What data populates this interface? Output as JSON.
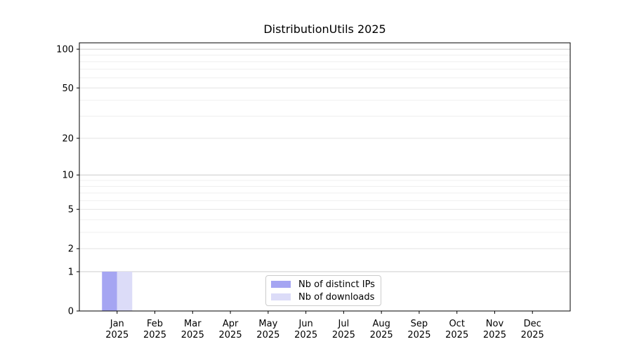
{
  "title": "DistributionUtils 2025",
  "chart_data": {
    "type": "bar",
    "title": "DistributionUtils 2025",
    "categories": [
      "Jan\n2025",
      "Feb\n2025",
      "Mar\n2025",
      "Apr\n2025",
      "May\n2025",
      "Jun\n2025",
      "Jul\n2025",
      "Aug\n2025",
      "Sep\n2025",
      "Oct\n2025",
      "Nov\n2025",
      "Dec\n2025"
    ],
    "series": [
      {
        "name": "Nb of distinct IPs",
        "color": "#a5a5f2",
        "values": [
          1,
          0,
          0,
          0,
          0,
          0,
          0,
          0,
          0,
          0,
          0,
          0
        ]
      },
      {
        "name": "Nb of downloads",
        "color": "#dcdcf8",
        "values": [
          1,
          0,
          0,
          0,
          0,
          0,
          0,
          0,
          0,
          0,
          0,
          0
        ]
      }
    ],
    "xlabel": "",
    "ylabel": "",
    "yscale": "log1p",
    "ylim": [
      0,
      112
    ],
    "yticks": [
      0,
      1,
      2,
      5,
      10,
      20,
      50,
      100
    ],
    "minor_yticks": [
      3,
      4,
      6,
      7,
      8,
      9,
      30,
      40,
      60,
      70,
      80,
      90
    ],
    "grid": "horizontal",
    "legend_position": "inside-bottom-center"
  },
  "legend": {
    "entries": [
      {
        "label": "Nb of distinct IPs",
        "color": "#a5a5f2"
      },
      {
        "label": "Nb of downloads",
        "color": "#dcdcf8"
      }
    ]
  },
  "colors": {
    "background": "#ffffff",
    "axis_spine": "#000000",
    "tick_text": "#000000",
    "gridline_decade": "#cccccc",
    "gridline_major": "#e3e3e3",
    "gridline_minor": "#efefef",
    "legend_border": "#cccccc"
  }
}
